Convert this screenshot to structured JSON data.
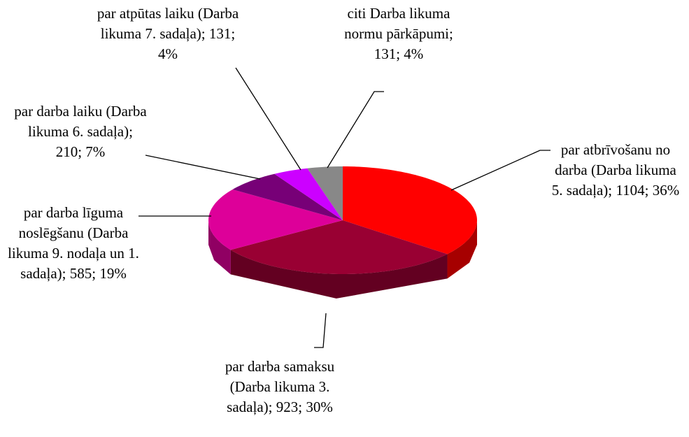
{
  "chart_data": {
    "type": "pie3d",
    "categories": [
      "par atbrīvošanu no darba (Darba likuma 5. sadaļa)",
      "par darba samaksu (Darba likuma 3. sadaļa)",
      "par darba līguma noslēgšanu (Darba likuma 9. nodaļa un 1. sadaļa)",
      "par darba laiku (Darba likuma 6. sadaļa)",
      "par atpūtas laiku (Darba likuma 7. sadaļa)",
      "citi Darba likuma normu pārkāpumi"
    ],
    "values": [
      1104,
      923,
      585,
      210,
      131,
      131
    ],
    "percent_labels": [
      "36%",
      "30%",
      "19%",
      "7%",
      "4%",
      "4%"
    ],
    "separator": "; ",
    "colors": [
      "#ff0000",
      "#990033",
      "#dd0099",
      "#770077",
      "#cc00ff",
      "#888888"
    ]
  }
}
